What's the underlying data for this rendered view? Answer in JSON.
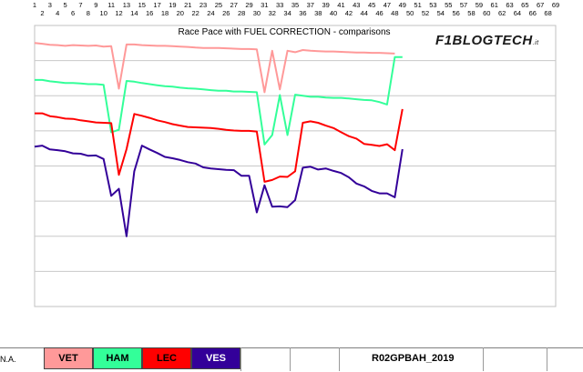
{
  "chart_data": {
    "type": "line",
    "title": "Race Pace with FUEL CORRECTION - comparisons",
    "x_ticks_top": [
      1,
      3,
      5,
      7,
      9,
      11,
      13,
      15,
      17,
      19,
      21,
      23,
      25,
      27,
      29,
      31,
      33,
      35,
      37,
      39,
      41,
      43,
      45,
      47,
      49,
      51,
      53,
      55,
      57,
      59,
      61,
      63,
      65,
      67,
      69
    ],
    "x_ticks_bottom": [
      2,
      4,
      6,
      8,
      10,
      12,
      14,
      16,
      18,
      20,
      22,
      24,
      26,
      28,
      30,
      32,
      34,
      36,
      38,
      40,
      42,
      44,
      46,
      48,
      50,
      52,
      54,
      56,
      58,
      60,
      62,
      64,
      66,
      68
    ],
    "xlim": [
      1,
      69
    ],
    "ylim": [
      0,
      8
    ],
    "grid": true,
    "series": [
      {
        "name": "VET",
        "color": "#ff9999",
        "x": [
          1,
          2,
          3,
          4,
          5,
          6,
          7,
          8,
          9,
          10,
          11,
          12,
          13,
          14,
          15,
          16,
          17,
          18,
          19,
          20,
          21,
          22,
          23,
          24,
          25,
          26,
          27,
          28,
          29,
          30,
          31,
          32,
          33,
          34,
          35,
          36,
          37,
          38,
          39,
          40,
          41,
          42,
          43,
          44,
          45,
          46,
          47,
          48
        ],
        "values": [
          7.5,
          7.48,
          7.45,
          7.44,
          7.42,
          7.44,
          7.43,
          7.42,
          7.43,
          7.4,
          7.41,
          6.2,
          7.46,
          7.46,
          7.44,
          7.43,
          7.42,
          7.42,
          7.41,
          7.4,
          7.39,
          7.37,
          7.36,
          7.36,
          7.36,
          7.35,
          7.34,
          7.33,
          7.33,
          7.32,
          6.1,
          7.28,
          6.18,
          7.28,
          7.24,
          7.3,
          7.28,
          7.27,
          7.26,
          7.26,
          7.25,
          7.24,
          7.23,
          7.23,
          7.22,
          7.22,
          7.21,
          7.2
        ]
      },
      {
        "name": "HAM",
        "color": "#33ff99",
        "x": [
          1,
          2,
          3,
          4,
          5,
          6,
          7,
          8,
          9,
          10,
          11,
          12,
          13,
          14,
          15,
          16,
          17,
          18,
          19,
          20,
          21,
          22,
          23,
          24,
          25,
          26,
          27,
          28,
          29,
          30,
          31,
          32,
          33,
          34,
          35,
          36,
          37,
          38,
          39,
          40,
          41,
          42,
          43,
          44,
          45,
          46,
          47,
          48,
          49
        ],
        "values": [
          6.45,
          6.45,
          6.41,
          6.39,
          6.36,
          6.36,
          6.35,
          6.33,
          6.33,
          6.31,
          4.96,
          5.03,
          6.42,
          6.4,
          6.36,
          6.33,
          6.3,
          6.27,
          6.26,
          6.23,
          6.21,
          6.2,
          6.18,
          6.16,
          6.14,
          6.14,
          6.12,
          6.12,
          6.11,
          6.1,
          4.61,
          4.88,
          6.02,
          4.88,
          6.03,
          6.0,
          5.97,
          5.97,
          5.95,
          5.94,
          5.94,
          5.92,
          5.9,
          5.88,
          5.87,
          5.82,
          5.75,
          7.1,
          7.1
        ]
      },
      {
        "name": "LEC",
        "color": "#ff0000",
        "x": [
          1,
          2,
          3,
          4,
          5,
          6,
          7,
          8,
          9,
          10,
          11,
          12,
          13,
          14,
          15,
          16,
          17,
          18,
          19,
          20,
          21,
          22,
          23,
          24,
          25,
          26,
          27,
          28,
          29,
          30,
          31,
          32,
          33,
          34,
          35,
          36,
          37,
          38,
          39,
          40,
          41,
          42,
          43,
          44,
          45,
          46,
          47,
          48,
          49
        ],
        "values": [
          5.5,
          5.5,
          5.42,
          5.39,
          5.35,
          5.34,
          5.3,
          5.27,
          5.24,
          5.23,
          5.22,
          3.75,
          4.48,
          5.48,
          5.43,
          5.37,
          5.3,
          5.25,
          5.19,
          5.15,
          5.11,
          5.1,
          5.09,
          5.08,
          5.06,
          5.03,
          5.01,
          5.0,
          5.0,
          4.98,
          3.55,
          3.6,
          3.7,
          3.69,
          3.85,
          5.23,
          5.27,
          5.23,
          5.15,
          5.08,
          4.96,
          4.85,
          4.78,
          4.63,
          4.6,
          4.57,
          4.62,
          4.45,
          5.62
        ]
      },
      {
        "name": "VES",
        "color": "#330099",
        "x": [
          1,
          2,
          3,
          4,
          5,
          6,
          7,
          8,
          9,
          10,
          11,
          12,
          13,
          14,
          15,
          16,
          17,
          18,
          19,
          20,
          21,
          22,
          23,
          24,
          25,
          26,
          27,
          28,
          29,
          30,
          31,
          32,
          33,
          34,
          35,
          36,
          37,
          38,
          39,
          40,
          41,
          42,
          43,
          44,
          45,
          46,
          47,
          48,
          49
        ],
        "values": [
          4.55,
          4.58,
          4.47,
          4.45,
          4.42,
          4.36,
          4.35,
          4.29,
          4.3,
          4.2,
          3.15,
          3.35,
          2.0,
          3.85,
          4.58,
          4.47,
          4.37,
          4.26,
          4.22,
          4.17,
          4.11,
          4.07,
          3.96,
          3.93,
          3.91,
          3.89,
          3.88,
          3.72,
          3.72,
          2.68,
          3.45,
          2.84,
          2.85,
          2.83,
          3.03,
          3.95,
          3.98,
          3.9,
          3.93,
          3.86,
          3.8,
          3.68,
          3.5,
          3.42,
          3.29,
          3.22,
          3.22,
          3.11,
          4.48
        ]
      }
    ],
    "legend_placement": "bottom",
    "row_label": "N.A.",
    "race_id": "R02GPBAH_2019",
    "brand": {
      "main": "F1BLOGTECH",
      "suffix": ".it"
    }
  }
}
